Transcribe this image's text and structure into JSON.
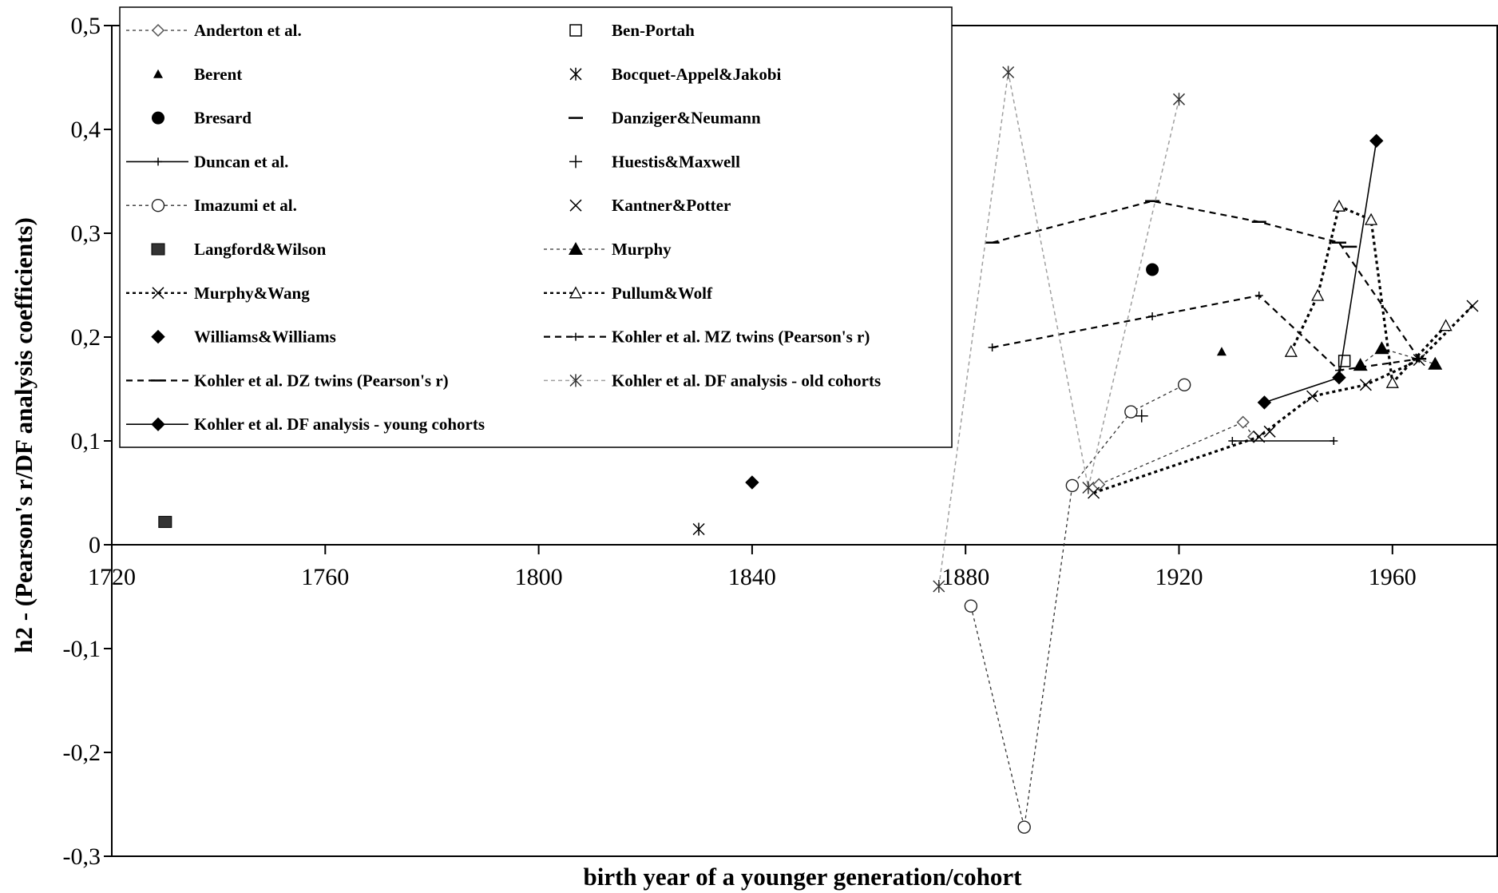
{
  "chart_data": {
    "type": "scatter",
    "xlabel": "birth year of a younger generation/cohort",
    "ylabel": "h2 - (Pearson's r/DF analysis coefficients)",
    "xlim": [
      1720,
      1975
    ],
    "ylim": [
      -0.3,
      0.5
    ],
    "x_ticks": [
      1720,
      1760,
      1800,
      1840,
      1880,
      1920,
      1960
    ],
    "x_tick_labels": [
      "1720",
      "1760",
      "1800",
      "1840",
      "1880",
      "1920",
      "1960"
    ],
    "y_ticks": [
      -0.3,
      -0.2,
      -0.1,
      0,
      0.1,
      0.2,
      0.3,
      0.4,
      0.5
    ],
    "y_tick_labels": [
      "-0,3",
      "-0,2",
      "-0,1",
      "0",
      "0,1",
      "0,2",
      "0,3",
      "0,4",
      "0,5"
    ],
    "grid": false,
    "legend_position": "top-left",
    "series": [
      {
        "name": "Anderton et al.",
        "marker": "diamond-open",
        "line": "dashed-thin",
        "color": "#555555",
        "points": [
          [
            1905,
            0.058
          ],
          [
            1932,
            0.118
          ],
          [
            1934,
            0.104
          ]
        ]
      },
      {
        "name": "Ben-Portah",
        "marker": "square-open",
        "line": "none",
        "color": "#000000",
        "points": [
          [
            1951,
            0.177
          ]
        ]
      },
      {
        "name": "Berent",
        "marker": "triangle-filled-small",
        "line": "none",
        "color": "#000000",
        "points": [
          [
            1928,
            0.186
          ]
        ]
      },
      {
        "name": "Bocquet-Appel&Jakobi",
        "marker": "asterisk",
        "line": "none",
        "color": "#000000",
        "points": [
          [
            1830,
            0.015
          ]
        ]
      },
      {
        "name": "Bresard",
        "marker": "circle-filled",
        "line": "none",
        "color": "#000000",
        "points": [
          [
            1915,
            0.265
          ]
        ]
      },
      {
        "name": "Danziger&Neumann",
        "marker": "dash",
        "line": "none",
        "color": "#000000",
        "points": [
          [
            1952,
            0.287
          ]
        ]
      },
      {
        "name": "Duncan et al.",
        "marker": "plus-small",
        "line": "solid",
        "color": "#000000",
        "points": [
          [
            1930,
            0.1
          ],
          [
            1949,
            0.1
          ]
        ]
      },
      {
        "name": "Huestis&Maxwell",
        "marker": "plus",
        "line": "none",
        "color": "#000000",
        "points": [
          [
            1913,
            0.124
          ]
        ]
      },
      {
        "name": "Imazumi et al.",
        "marker": "circle-open",
        "line": "dashed-thin",
        "color": "#222222",
        "points": [
          [
            1881,
            -0.059
          ],
          [
            1891,
            -0.272
          ],
          [
            1900,
            0.057
          ],
          [
            1911,
            0.128
          ],
          [
            1921,
            0.154
          ]
        ]
      },
      {
        "name": "Kantner&Potter",
        "marker": "x",
        "line": "none",
        "color": "#000000",
        "points": [
          [
            1937,
            0.109
          ]
        ]
      },
      {
        "name": "Langford&Wilson",
        "marker": "square-filled",
        "line": "none",
        "color": "#333333",
        "points": [
          [
            1730,
            0.022
          ]
        ]
      },
      {
        "name": "Murphy",
        "marker": "triangle-filled",
        "line": "dashed-thin",
        "color": "#000000",
        "points": [
          [
            1954,
            0.173
          ],
          [
            1958,
            0.189
          ],
          [
            1968,
            0.174
          ]
        ]
      },
      {
        "name": "Murphy&Wang",
        "marker": "x",
        "line": "dotted-bold",
        "color": "#000000",
        "points": [
          [
            1904,
            0.05
          ],
          [
            1935,
            0.104
          ],
          [
            1945,
            0.143
          ],
          [
            1955,
            0.154
          ],
          [
            1965,
            0.178
          ],
          [
            1975,
            0.23
          ]
        ]
      },
      {
        "name": "Pullum&Wolf",
        "marker": "triangle-open",
        "line": "dotted-bold",
        "color": "#000000",
        "points": [
          [
            1941,
            0.186
          ],
          [
            1946,
            0.24
          ],
          [
            1950,
            0.326
          ],
          [
            1956,
            0.313
          ],
          [
            1960,
            0.156
          ],
          [
            1970,
            0.211
          ]
        ]
      },
      {
        "name": "Williams&Williams",
        "marker": "diamond-filled",
        "line": "none",
        "color": "#000000",
        "points": [
          [
            1840,
            0.06
          ]
        ]
      },
      {
        "name": "Kohler et al. MZ twins (Pearson's r)",
        "marker": "plus-small",
        "line": "dashed",
        "color": "#000000",
        "points": [
          [
            1885,
            0.19
          ],
          [
            1915,
            0.22
          ],
          [
            1935,
            0.24
          ],
          [
            1950,
            0.168
          ],
          [
            1965,
            0.179
          ]
        ]
      },
      {
        "name": "Kohler et al. DZ twins (Pearson's r)",
        "marker": "dash",
        "line": "dashed",
        "color": "#000000",
        "points": [
          [
            1885,
            0.291
          ],
          [
            1915,
            0.331
          ],
          [
            1935,
            0.311
          ],
          [
            1950,
            0.291
          ],
          [
            1965,
            0.179
          ]
        ]
      },
      {
        "name": "Kohler et al. DF analysis - old cohorts",
        "marker": "asterisk",
        "line": "dashed-gray",
        "color": "#999999",
        "points": [
          [
            1875,
            -0.04
          ],
          [
            1888,
            0.455
          ],
          [
            1903,
            0.055
          ],
          [
            1920,
            0.429
          ]
        ]
      },
      {
        "name": "Kohler et al. DF analysis - young cohorts",
        "marker": "diamond-filled",
        "line": "solid",
        "color": "#000000",
        "points": [
          [
            1936,
            0.137
          ],
          [
            1950,
            0.161
          ],
          [
            1957,
            0.389
          ]
        ]
      }
    ]
  }
}
